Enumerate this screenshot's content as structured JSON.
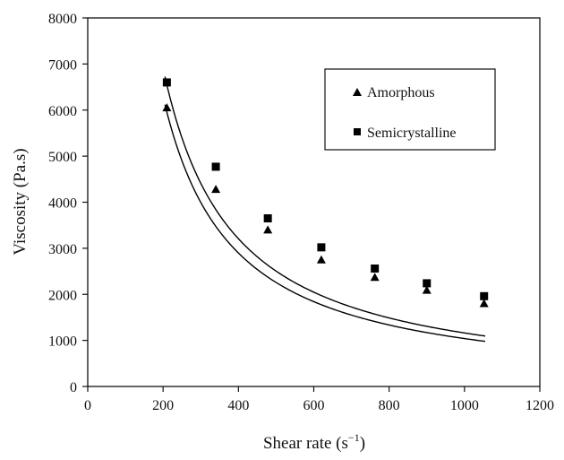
{
  "chart_data": {
    "type": "scatter",
    "title": "",
    "xlabel": "Shear rate (s",
    "xlabel_sup": "−1",
    "xlabel_close": ")",
    "ylabel": "Viscosity (Pa.s)",
    "xlim": [
      0,
      1200
    ],
    "ylim": [
      0,
      8000
    ],
    "x_ticks": [
      0,
      200,
      400,
      600,
      800,
      1000,
      1200
    ],
    "y_ticks": [
      0,
      1000,
      2000,
      3000,
      4000,
      5000,
      6000,
      7000,
      8000
    ],
    "grid": false,
    "legend": "top-right",
    "series": [
      {
        "name": "Amorphous",
        "marker": "triangle",
        "color": "#000000",
        "x": [
          210,
          340,
          478,
          620,
          762,
          900,
          1052
        ],
        "y": [
          6050,
          4280,
          3400,
          2750,
          2370,
          2090,
          1800
        ],
        "fit": {
          "type": "power",
          "a": 2350000,
          "b": -1.118,
          "x_range": [
            205,
            1055
          ]
        }
      },
      {
        "name": "Semicrystalline",
        "marker": "square",
        "color": "#000000",
        "x": [
          210,
          340,
          478,
          620,
          762,
          900,
          1052
        ],
        "y": [
          6600,
          4770,
          3650,
          3020,
          2560,
          2240,
          1960
        ],
        "fit": {
          "type": "power",
          "a": 2450000,
          "b": -1.108,
          "x_range": [
            205,
            1055
          ]
        }
      }
    ]
  }
}
